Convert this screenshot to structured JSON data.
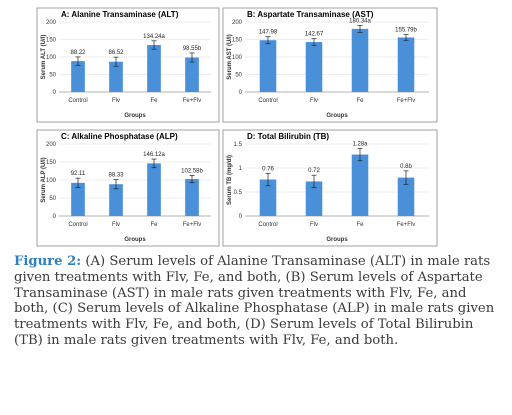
{
  "bar_color": "#4a90d9",
  "chart_data": [
    {
      "type": "bar",
      "title": "A: Alanine Transaminase (ALT)",
      "ylabel": "Serum ALT (U/l)",
      "xlabel": "Groups",
      "categories": [
        "Control",
        "Flv",
        "Fe",
        "Fe+Flv"
      ],
      "values": [
        88.22,
        86.52,
        134.24,
        98.55
      ],
      "errors": [
        12,
        13,
        12,
        13
      ],
      "data_labels": [
        "88.22",
        "86.52",
        "134.24a",
        "98.55b"
      ],
      "ylim": [
        0,
        200
      ],
      "yticks": [
        "0",
        "50",
        "100",
        "150",
        "200"
      ],
      "grid": true
    },
    {
      "type": "bar",
      "title": "B: Aspartate Transaminase (AST)",
      "ylabel": "Serum AST (U/l)",
      "xlabel": "Groups",
      "categories": [
        "Control",
        "Flv",
        "Fe",
        "Fe+Flv"
      ],
      "values": [
        147.98,
        142.67,
        180.34,
        155.79
      ],
      "errors": [
        10,
        10,
        10,
        8
      ],
      "data_labels": [
        "147.98",
        "142.67",
        "180.34a",
        "155.79b"
      ],
      "ylim": [
        0,
        200
      ],
      "yticks": [
        "0",
        "50",
        "100",
        "150",
        "200"
      ],
      "grid": true
    },
    {
      "type": "bar",
      "title": "C: Alkaline Phosphatase (ALP)",
      "ylabel": "Serum ALP (U/l)",
      "xlabel": "Groups",
      "categories": [
        "Control",
        "Flv",
        "Fe",
        "Fe+Flv"
      ],
      "values": [
        92.11,
        88.33,
        146.12,
        102.58
      ],
      "errors": [
        13,
        13,
        12,
        10
      ],
      "data_labels": [
        "92.11",
        "88.33",
        "146.12a",
        "102.58b"
      ],
      "ylim": [
        0,
        200
      ],
      "yticks": [
        "0",
        "50",
        "100",
        "150",
        "200"
      ],
      "grid": true
    },
    {
      "type": "bar",
      "title": "D: Total Bilirubin (TB)",
      "ylabel": "Serum TB (mg/dl)",
      "xlabel": "Groups",
      "categories": [
        "Control",
        "Flv",
        "Fe",
        "Fe+Flv"
      ],
      "values": [
        0.76,
        0.72,
        1.28,
        0.8
      ],
      "errors": [
        0.13,
        0.13,
        0.13,
        0.14
      ],
      "data_labels": [
        "0.76",
        "0.72",
        "1.28a",
        "0.8b"
      ],
      "ylim": [
        0,
        1.5
      ],
      "yticks": [
        "0",
        "0.5",
        "1",
        "1.5"
      ],
      "grid": true
    }
  ],
  "caption": {
    "label": "Figure 2:",
    "text": " (A) Serum levels of Alanine Transaminase (ALT) in male rats given treatments with Flv, Fe, and both, (B) Serum levels of Aspartate Transaminase (AST) in male rats given treatments with Flv, Fe, and both, (C) Serum levels of Alkaline Phosphatase (ALP) in male rats given treatments with Flv, Fe, and both, (D) Serum levels of Total Bilirubin (TB) in male rats given treatments with Flv, Fe, and both."
  }
}
